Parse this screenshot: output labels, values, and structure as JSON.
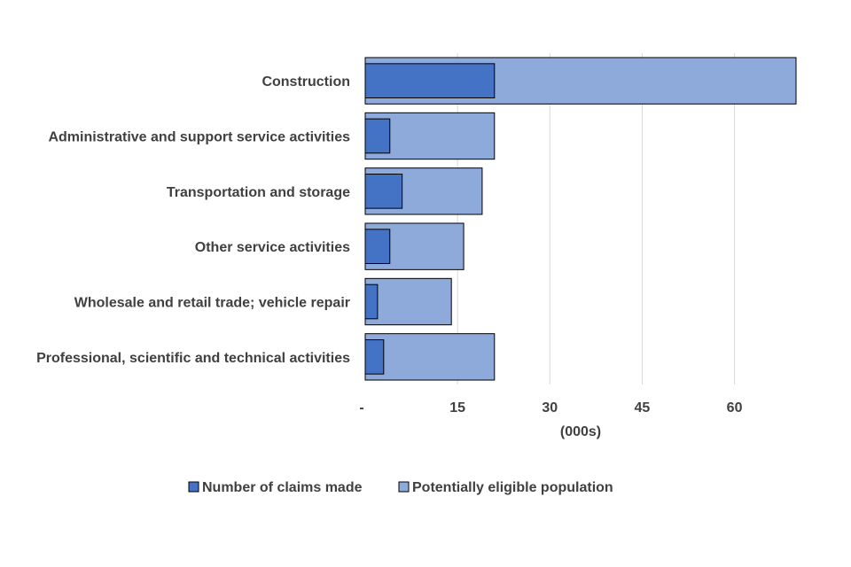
{
  "chart_data": {
    "type": "bar",
    "orientation": "horizontal",
    "bar_mode": "overlap",
    "categories": [
      "Construction",
      "Administrative and support service activities",
      "Transportation and storage",
      "Other service activities",
      "Wholesale and retail trade; vehicle repair",
      "Professional, scientific and technical activities"
    ],
    "series": [
      {
        "name": "Potentially eligible population",
        "color": "#8eaadb",
        "values": [
          70,
          21,
          19,
          16,
          14,
          21
        ]
      },
      {
        "name": "Number of claims made",
        "color": "#4472c4",
        "values": [
          21,
          4,
          6,
          4,
          2,
          3
        ]
      }
    ],
    "xaxis": {
      "label": "(000s)",
      "range": [
        0,
        70
      ],
      "ticks": [
        0,
        15,
        30,
        45,
        60
      ],
      "tick_labels": [
        "-",
        "15",
        "30",
        "45",
        "60"
      ]
    },
    "grid": "vertical",
    "legend_position": "bottom",
    "title": ""
  }
}
